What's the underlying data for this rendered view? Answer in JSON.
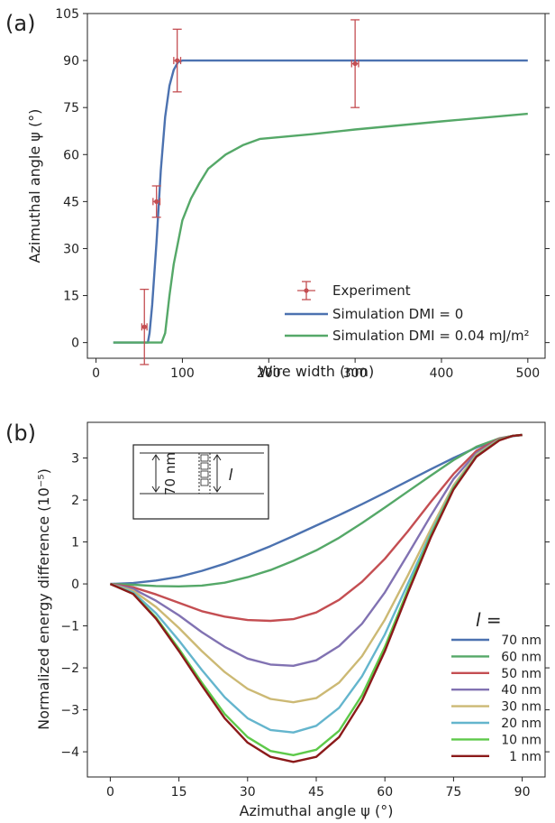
{
  "chart_data": [
    {
      "panel_label": "(a)",
      "type": "line",
      "xlabel": "Wire width (nm)",
      "ylabel": "Azimuthal angle ψ (°)",
      "xlim": [
        -10,
        520
      ],
      "ylim": [
        -5,
        105
      ],
      "xticks": [
        "0",
        "100",
        "200",
        "300",
        "400",
        "500"
      ],
      "yticks": [
        "0",
        "15",
        "30",
        "45",
        "60",
        "75",
        "90",
        "105"
      ],
      "grid": false,
      "legend_position": "lower-right",
      "experiment": {
        "name": "Experiment",
        "color": "#c44e52",
        "points": [
          {
            "x": 56,
            "y": 5,
            "xerr": 3,
            "yerr": 12
          },
          {
            "x": 70,
            "y": 45,
            "xerr": 4,
            "yerr": 5
          },
          {
            "x": 94,
            "y": 90,
            "xerr": 4,
            "yerr": 10
          },
          {
            "x": 300,
            "y": 89,
            "xerr": 4,
            "yerr": 14
          }
        ]
      },
      "series": [
        {
          "name": "Simulation DMI = 0",
          "color": "#4c72b0",
          "x": [
            20,
            40,
            60,
            62,
            65,
            70,
            75,
            80,
            85,
            90,
            95,
            100,
            150,
            200,
            300,
            400,
            500
          ],
          "y": [
            0,
            0,
            0,
            3,
            12,
            32,
            55,
            72,
            82,
            87,
            89.5,
            90,
            90,
            90,
            90,
            90,
            90
          ]
        },
        {
          "name": "Simulation DMI = 0.04 mJ/m²",
          "color": "#55a868",
          "x": [
            20,
            40,
            60,
            76,
            80,
            85,
            90,
            100,
            110,
            120,
            130,
            150,
            170,
            190,
            210,
            250,
            300,
            350,
            400,
            450,
            500
          ],
          "y": [
            0,
            0,
            0,
            0,
            3,
            15,
            25,
            39,
            46,
            51,
            55.5,
            60,
            63,
            65,
            65.5,
            66.5,
            68,
            69.3,
            70.6,
            71.8,
            73
          ]
        }
      ]
    },
    {
      "panel_label": "(b)",
      "type": "line",
      "xlabel": "Azimuthal angle ψ (°)",
      "ylabel": "Normalized energy difference (10⁻⁵)",
      "xlim": [
        -5,
        95
      ],
      "ylim": [
        -4.6,
        3.85
      ],
      "xticks": [
        "0",
        "15",
        "30",
        "45",
        "60",
        "75",
        "90"
      ],
      "yticks": [
        "−4",
        "−3",
        "−2",
        "−1",
        "0",
        "1",
        "2",
        "3"
      ],
      "grid": false,
      "legend_title": "l =",
      "legend_position": "lower-right",
      "inset": {
        "width_label": "70 nm",
        "length_label": "l"
      },
      "series": [
        {
          "name": "70 nm",
          "color": "#4c72b0",
          "x": [
            0,
            5,
            10,
            15,
            20,
            25,
            30,
            35,
            40,
            45,
            50,
            55,
            60,
            65,
            70,
            75,
            80,
            85,
            88,
            90
          ],
          "y": [
            0,
            0.02,
            0.08,
            0.17,
            0.31,
            0.48,
            0.68,
            0.9,
            1.14,
            1.39,
            1.64,
            1.9,
            2.17,
            2.45,
            2.73,
            3.0,
            3.25,
            3.45,
            3.52,
            3.55
          ]
        },
        {
          "name": "60 nm",
          "color": "#55a868",
          "x": [
            0,
            5,
            10,
            15,
            20,
            25,
            30,
            35,
            40,
            45,
            50,
            55,
            60,
            65,
            70,
            75,
            80,
            85,
            88,
            90
          ],
          "y": [
            0,
            -0.02,
            -0.05,
            -0.06,
            -0.04,
            0.03,
            0.16,
            0.33,
            0.55,
            0.8,
            1.1,
            1.45,
            1.82,
            2.2,
            2.58,
            2.95,
            3.27,
            3.47,
            3.53,
            3.55
          ]
        },
        {
          "name": "50 nm",
          "color": "#c44e52",
          "x": [
            0,
            5,
            10,
            15,
            20,
            25,
            30,
            35,
            40,
            45,
            50,
            55,
            60,
            65,
            70,
            75,
            80,
            85,
            88,
            90
          ],
          "y": [
            0,
            -0.08,
            -0.25,
            -0.45,
            -0.65,
            -0.78,
            -0.86,
            -0.88,
            -0.84,
            -0.68,
            -0.38,
            0.05,
            0.6,
            1.25,
            1.95,
            2.62,
            3.17,
            3.46,
            3.53,
            3.55
          ]
        },
        {
          "name": "40 nm",
          "color": "#8172b2",
          "x": [
            0,
            5,
            10,
            15,
            20,
            25,
            30,
            35,
            40,
            45,
            50,
            55,
            60,
            65,
            70,
            75,
            80,
            85,
            88,
            90
          ],
          "y": [
            0,
            -0.12,
            -0.4,
            -0.75,
            -1.15,
            -1.5,
            -1.78,
            -1.92,
            -1.95,
            -1.82,
            -1.48,
            -0.95,
            -0.2,
            0.7,
            1.62,
            2.5,
            3.12,
            3.45,
            3.53,
            3.55
          ]
        },
        {
          "name": "30 nm",
          "color": "#ccb974",
          "x": [
            0,
            5,
            10,
            15,
            20,
            25,
            30,
            35,
            40,
            45,
            50,
            55,
            60,
            65,
            70,
            75,
            80,
            85,
            88,
            90
          ],
          "y": [
            0,
            -0.16,
            -0.55,
            -1.05,
            -1.6,
            -2.1,
            -2.5,
            -2.74,
            -2.82,
            -2.72,
            -2.35,
            -1.72,
            -0.85,
            0.2,
            1.3,
            2.35,
            3.08,
            3.44,
            3.53,
            3.55
          ]
        },
        {
          "name": "20 nm",
          "color": "#64b5cd",
          "x": [
            0,
            5,
            10,
            15,
            20,
            25,
            30,
            35,
            40,
            45,
            50,
            55,
            60,
            65,
            70,
            75,
            80,
            85,
            88,
            90
          ],
          "y": [
            0,
            -0.2,
            -0.7,
            -1.35,
            -2.05,
            -2.7,
            -3.2,
            -3.48,
            -3.54,
            -3.38,
            -2.95,
            -2.2,
            -1.2,
            0.0,
            1.2,
            2.3,
            3.05,
            3.43,
            3.53,
            3.55
          ]
        },
        {
          "name": "10 nm",
          "color": "#5ec94a",
          "x": [
            0,
            5,
            10,
            15,
            20,
            25,
            30,
            35,
            40,
            45,
            50,
            55,
            60,
            65,
            70,
            75,
            80,
            85,
            88,
            90
          ],
          "y": [
            0,
            -0.23,
            -0.8,
            -1.55,
            -2.35,
            -3.1,
            -3.65,
            -3.98,
            -4.08,
            -3.95,
            -3.5,
            -2.65,
            -1.5,
            -0.15,
            1.15,
            2.28,
            3.04,
            3.43,
            3.53,
            3.55
          ]
        },
        {
          "name": "1 nm",
          "color": "#8b1a1a",
          "x": [
            0,
            5,
            10,
            15,
            20,
            25,
            30,
            35,
            40,
            45,
            50,
            55,
            60,
            65,
            70,
            75,
            80,
            85,
            88,
            90
          ],
          "y": [
            0,
            -0.24,
            -0.83,
            -1.6,
            -2.42,
            -3.2,
            -3.78,
            -4.12,
            -4.24,
            -4.12,
            -3.65,
            -2.78,
            -1.6,
            -0.22,
            1.1,
            2.25,
            3.03,
            3.42,
            3.53,
            3.55
          ]
        }
      ]
    }
  ]
}
